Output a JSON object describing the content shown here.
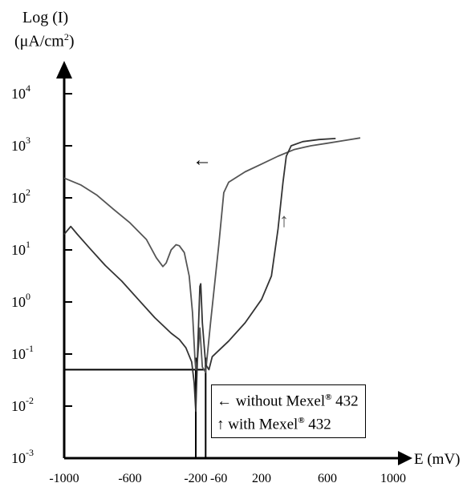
{
  "chart_data": {
    "type": "line",
    "ylabel_line1": "Log (I)",
    "ylabel_line2": "(μA/cm",
    "ylabel_sup": "2",
    "ylabel_close": ")",
    "xlabel": "E (mV)",
    "xlim": [
      -1000,
      1000
    ],
    "ylim_log10": [
      -3,
      4
    ],
    "x_ticks": [
      {
        "value": -1000,
        "label": "-1000"
      },
      {
        "value": -600,
        "label": "-600"
      },
      {
        "value": -200,
        "label": "-200"
      },
      {
        "value": -60,
        "label": "-60"
      },
      {
        "value": 200,
        "label": "200"
      },
      {
        "value": 600,
        "label": "600"
      },
      {
        "value": 1000,
        "label": "1000"
      }
    ],
    "y_ticks": [
      {
        "exp": 4,
        "base": "10",
        "sup": "4"
      },
      {
        "exp": 3,
        "base": "10",
        "sup": "3"
      },
      {
        "exp": 2,
        "base": "10",
        "sup": "2"
      },
      {
        "exp": 1,
        "base": "10",
        "sup": "1"
      },
      {
        "exp": 0,
        "base": "10",
        "sup": "0"
      },
      {
        "exp": -1,
        "base": "10",
        "sup": "-1"
      },
      {
        "exp": -2,
        "base": "10",
        "sup": "-2"
      },
      {
        "exp": -3,
        "base": "10",
        "sup": "-3"
      }
    ],
    "series": [
      {
        "name": "without Mexel® 432",
        "marker": "←",
        "points_log10": [
          [
            -1000,
            2.38
          ],
          [
            -900,
            2.25
          ],
          [
            -800,
            2.05
          ],
          [
            -700,
            1.78
          ],
          [
            -600,
            1.52
          ],
          [
            -500,
            1.2
          ],
          [
            -440,
            0.85
          ],
          [
            -400,
            0.68
          ],
          [
            -380,
            0.75
          ],
          [
            -350,
            1.0
          ],
          [
            -320,
            1.1
          ],
          [
            -300,
            1.08
          ],
          [
            -270,
            0.95
          ],
          [
            -240,
            0.5
          ],
          [
            -220,
            -0.2
          ],
          [
            -205,
            -1.1
          ],
          [
            -200,
            -1.3
          ],
          [
            -190,
            -1.1
          ],
          [
            -175,
            -0.5
          ],
          [
            -160,
            -1.25
          ],
          [
            -140,
            -1.35
          ],
          [
            -110,
            -0.4
          ],
          [
            -60,
            1.1
          ],
          [
            -30,
            2.1
          ],
          [
            0,
            2.3
          ],
          [
            100,
            2.5
          ],
          [
            200,
            2.65
          ],
          [
            300,
            2.8
          ],
          [
            400,
            2.93
          ],
          [
            500,
            3.0
          ],
          [
            600,
            3.05
          ],
          [
            700,
            3.1
          ],
          [
            800,
            3.15
          ]
        ]
      },
      {
        "name": "with Mexel® 432",
        "marker": "↑",
        "points_log10": [
          [
            -1000,
            1.3
          ],
          [
            -960,
            1.45
          ],
          [
            -920,
            1.3
          ],
          [
            -850,
            1.05
          ],
          [
            -750,
            0.7
          ],
          [
            -650,
            0.4
          ],
          [
            -550,
            0.05
          ],
          [
            -450,
            -0.3
          ],
          [
            -350,
            -0.6
          ],
          [
            -300,
            -0.72
          ],
          [
            -260,
            -0.88
          ],
          [
            -225,
            -1.15
          ],
          [
            -210,
            -1.55
          ],
          [
            -200,
            -2.1
          ],
          [
            -195,
            -1.6
          ],
          [
            -185,
            -0.6
          ],
          [
            -175,
            0.3
          ],
          [
            -170,
            0.35
          ],
          [
            -160,
            -0.4
          ],
          [
            -140,
            -1.2
          ],
          [
            -120,
            -1.3
          ],
          [
            -100,
            -1.05
          ],
          [
            0,
            -0.75
          ],
          [
            100,
            -0.4
          ],
          [
            200,
            0.05
          ],
          [
            260,
            0.5
          ],
          [
            300,
            1.4
          ],
          [
            330,
            2.3
          ],
          [
            350,
            2.8
          ],
          [
            380,
            3.0
          ],
          [
            450,
            3.08
          ],
          [
            550,
            3.12
          ],
          [
            650,
            3.14
          ]
        ]
      }
    ],
    "reference_lines": {
      "horizontal_log10": -1.3,
      "vertical_x": [
        -200,
        -140
      ]
    },
    "arrow_up_text": "↑",
    "arrow_left_text": "←"
  },
  "legend": {
    "row1_arrow": "←",
    "row1_text": " without Mexel",
    "row1_sup": "®",
    "row1_tail": " 432",
    "row2_arrow": "↑",
    "row2_text": " with Mexel",
    "row2_sup": "®",
    "row2_tail": " 432"
  }
}
